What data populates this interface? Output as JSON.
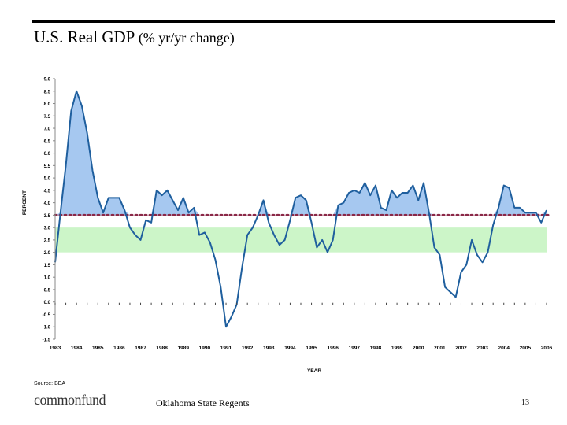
{
  "header": {
    "title_main": "U.S. Real GDP",
    "title_sub": "(% yr/yr change)"
  },
  "chart_data": {
    "type": "line",
    "title": "U.S. Real GDP (% yr/yr change)",
    "xlabel": "YEAR",
    "ylabel": "PERCENT",
    "ylim": [
      -1.5,
      9.0
    ],
    "ytick_labels": [
      "9.0",
      "8.5",
      "8.0",
      "7.5",
      "7.0",
      "6.5",
      "6.0",
      "5.5",
      "5.0",
      "4.5",
      "4.0",
      "3.5",
      "3.0",
      "2.5",
      "2.0",
      "1.5",
      "1.0",
      "0.5",
      "0.0",
      "-0.5",
      "-1.0",
      "-1.5"
    ],
    "year_start": 1983,
    "year_end": 2006,
    "x_tick_labels": [
      "1983",
      "1984",
      "1985",
      "1986",
      "1987",
      "1988",
      "1989",
      "1990",
      "1991",
      "1992",
      "1993",
      "1994",
      "1995",
      "1996",
      "1997",
      "1998",
      "1999",
      "2000",
      "2001",
      "2002",
      "2003",
      "2004",
      "2005",
      "2006"
    ],
    "reference_line": 3.5,
    "shaded_band": [
      2.0,
      3.0
    ],
    "series": [
      {
        "name": "Real GDP % yr/yr change",
        "x": [
          1983.0,
          1983.25,
          1983.5,
          1983.75,
          1984.0,
          1984.25,
          1984.5,
          1984.75,
          1985.0,
          1985.25,
          1985.5,
          1985.75,
          1986.0,
          1986.25,
          1986.5,
          1986.75,
          1987.0,
          1987.25,
          1987.5,
          1987.75,
          1988.0,
          1988.25,
          1988.5,
          1988.75,
          1989.0,
          1989.25,
          1989.5,
          1989.75,
          1990.0,
          1990.25,
          1990.5,
          1990.75,
          1991.0,
          1991.25,
          1991.5,
          1991.75,
          1992.0,
          1992.25,
          1992.5,
          1992.75,
          1993.0,
          1993.25,
          1993.5,
          1993.75,
          1994.0,
          1994.25,
          1994.5,
          1994.75,
          1995.0,
          1995.25,
          1995.5,
          1995.75,
          1996.0,
          1996.25,
          1996.5,
          1996.75,
          1997.0,
          1997.25,
          1997.5,
          1997.75,
          1998.0,
          1998.25,
          1998.5,
          1998.75,
          1999.0,
          1999.25,
          1999.5,
          1999.75,
          2000.0,
          2000.25,
          2000.5,
          2000.75,
          2001.0,
          2001.25,
          2001.5,
          2001.75,
          2002.0,
          2002.25,
          2002.5,
          2002.75,
          2003.0,
          2003.25,
          2003.5,
          2003.75,
          2004.0,
          2004.25,
          2004.5,
          2004.75,
          2005.0,
          2005.25,
          2005.5,
          2005.75,
          2006.0
        ],
        "values": [
          1.6,
          3.6,
          5.5,
          7.7,
          8.5,
          7.9,
          6.8,
          5.3,
          4.2,
          3.6,
          4.2,
          4.2,
          4.2,
          3.7,
          3.0,
          2.7,
          2.5,
          3.3,
          3.2,
          4.5,
          4.3,
          4.5,
          4.1,
          3.7,
          4.2,
          3.6,
          3.8,
          2.7,
          2.8,
          2.4,
          1.7,
          0.6,
          -1.0,
          -0.6,
          -0.1,
          1.4,
          2.7,
          3.0,
          3.5,
          4.1,
          3.2,
          2.7,
          2.3,
          2.5,
          3.3,
          4.2,
          4.3,
          4.1,
          3.2,
          2.2,
          2.5,
          2.0,
          2.5,
          3.9,
          4.0,
          4.4,
          4.5,
          4.4,
          4.8,
          4.3,
          4.7,
          3.8,
          3.7,
          4.5,
          4.2,
          4.4,
          4.4,
          4.7,
          4.1,
          4.8,
          3.6,
          2.2,
          1.9,
          0.6,
          0.4,
          0.2,
          1.2,
          1.5,
          2.5,
          1.9,
          1.6,
          2.0,
          3.1,
          3.8,
          4.7,
          4.6,
          3.8,
          3.8,
          3.6,
          3.6,
          3.6,
          3.2,
          3.7
        ]
      }
    ]
  },
  "footer": {
    "source": "Source: BEA",
    "brand": "commonfund",
    "center_text": "Oklahoma State Regents",
    "page_number": "13"
  },
  "colors": {
    "line": "#1f5f9e",
    "above_fill": "#a6c8f0",
    "band": "#ccf5c8",
    "reference": "#8a2847"
  }
}
